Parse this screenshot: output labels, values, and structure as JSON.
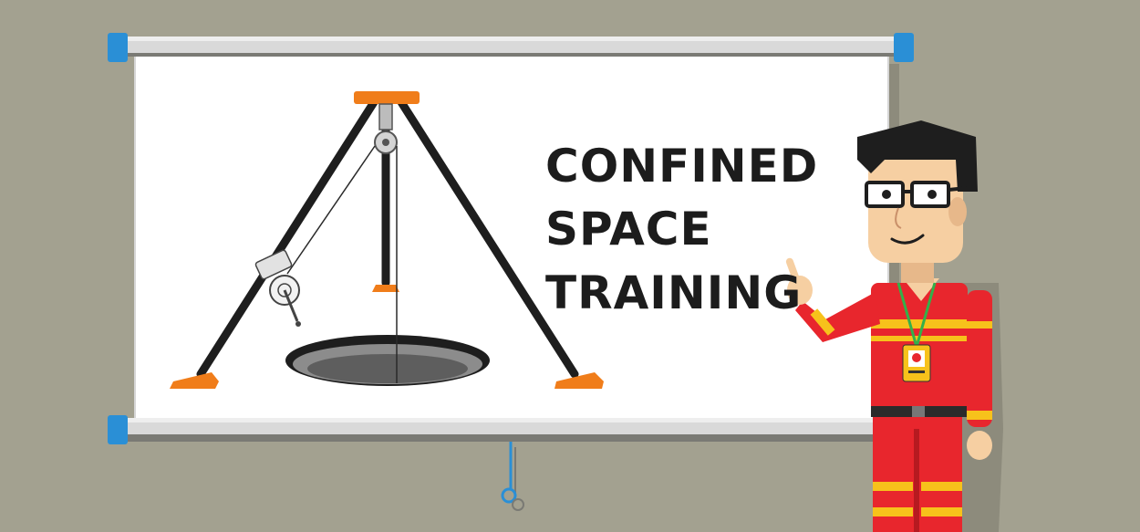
{
  "banner": {
    "title_lines": [
      "CONFINED",
      "SPACE",
      "TRAINING"
    ]
  },
  "colors": {
    "background": "#a3a190",
    "screen": "#ffffff",
    "screen_frame": "#d3d3d3",
    "roller_caps": "#2a8fd6",
    "tripod_legs": "#1e1e1e",
    "tripod_accent": "#f07d1a",
    "uniform": "#e8262d",
    "uniform_stripe": "#f7c21b",
    "skin": "#f6cfa2",
    "hair": "#1e1e1e",
    "text": "#1c1c1c"
  },
  "illustration": {
    "left": "tripod-over-manhole",
    "right": "presenter-in-red-coveralls"
  }
}
